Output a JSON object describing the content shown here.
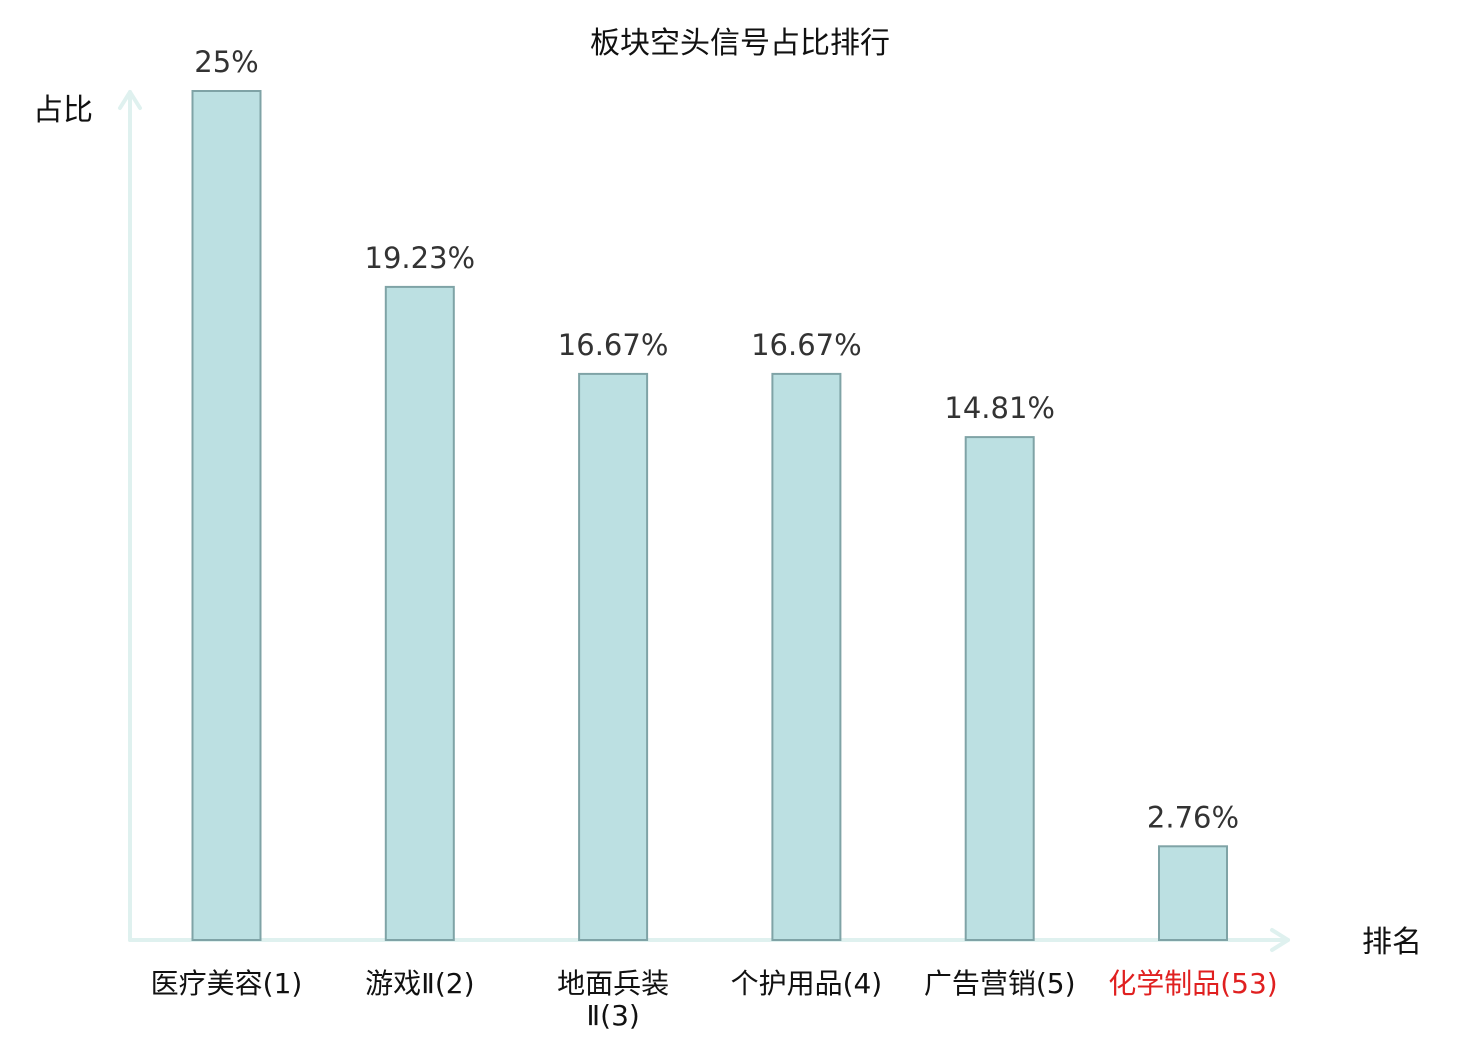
{
  "chart_data": {
    "type": "bar",
    "title": "板块空头信号占比排行",
    "ylabel": "占比",
    "xlabel": "排名",
    "categories": [
      [
        "医疗美容(1)"
      ],
      [
        "游戏Ⅱ(2)"
      ],
      [
        "地面兵装",
        "Ⅱ(3)"
      ],
      [
        "个护用品(4)"
      ],
      [
        "广告营销(5)"
      ],
      [
        "化学制品(53)"
      ]
    ],
    "values": [
      25,
      19.23,
      16.67,
      16.67,
      14.81,
      2.76
    ],
    "value_labels": [
      "25%",
      "19.23%",
      "16.67%",
      "16.67%",
      "14.81%",
      "2.76%"
    ],
    "ylim": [
      0,
      25
    ],
    "highlight_index": 5,
    "colors": {
      "bar_fill": "#bce0e2",
      "bar_stroke": "#7fa3a6",
      "axis": "#dff1ef",
      "highlight_text": "#e02020"
    },
    "grid": false,
    "legend": "none"
  }
}
